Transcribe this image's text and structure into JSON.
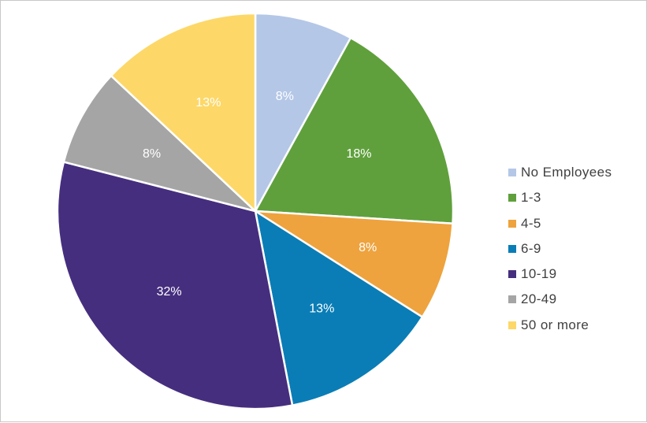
{
  "chart_data": {
    "type": "pie",
    "categories": [
      "No Employees",
      "1-3",
      "4-5",
      "6-9",
      "10-19",
      "20-49",
      "50 or more"
    ],
    "values": [
      8,
      18,
      8,
      13,
      32,
      8,
      13
    ],
    "labels": [
      "8%",
      "18%",
      "8%",
      "13%",
      "32%",
      "8%",
      "13%"
    ],
    "colors": [
      "#b4c7e7",
      "#5fa03c",
      "#eea33e",
      "#0a7db6",
      "#452e7e",
      "#a5a5a5",
      "#fdd868"
    ],
    "legend_position": "right",
    "start_angle_deg": 0,
    "direction": "clockwise"
  }
}
